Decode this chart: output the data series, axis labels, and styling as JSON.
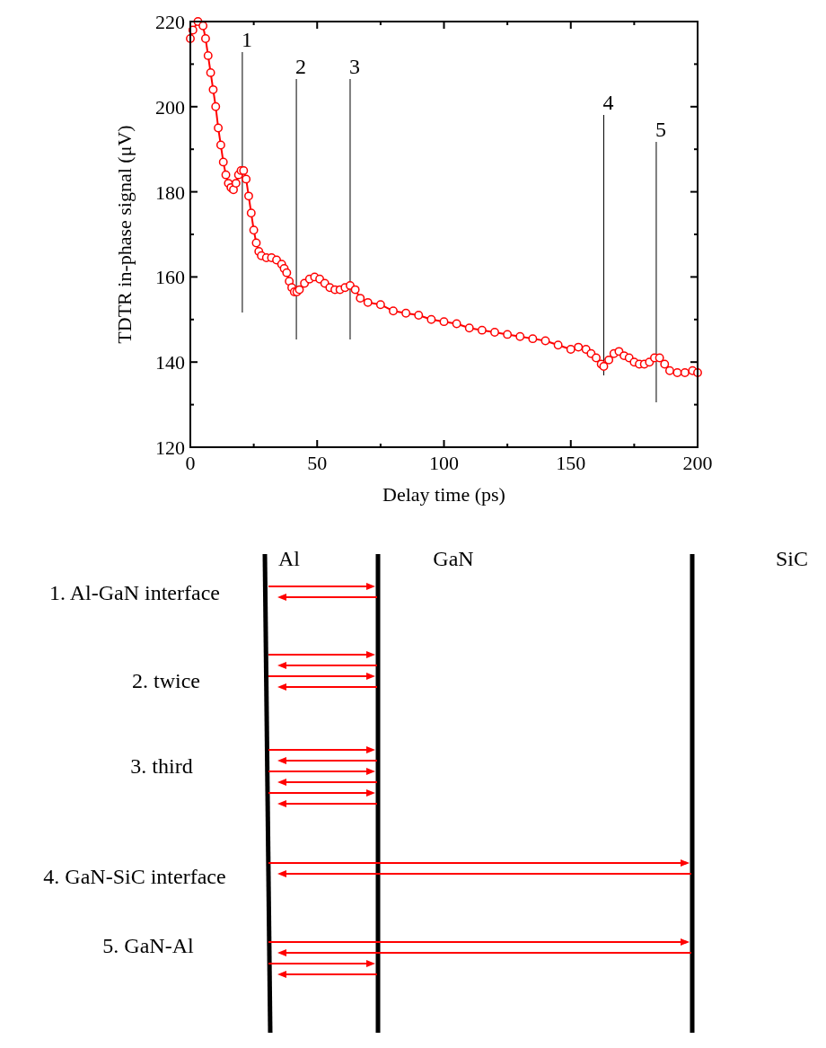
{
  "chart_data": [
    {
      "type": "line",
      "xlabel": "Delay time (ps)",
      "ylabel": "TDTR in-phase signal (μV)",
      "marker": "circle",
      "line_style": "solid",
      "xlim": [
        0,
        200
      ],
      "ylim": [
        120,
        220
      ],
      "xticks": [
        0,
        {
          "value": 25,
          "label": null
        },
        50,
        {
          "value": 75,
          "label": null
        },
        100,
        {
          "value": 125,
          "label": null
        },
        150,
        {
          "value": 175,
          "label": null
        },
        200
      ],
      "yticks": [
        120,
        {
          "value": 130,
          "label": null
        },
        140,
        {
          "value": 150,
          "label": null
        },
        160,
        {
          "value": 170,
          "label": null
        },
        180,
        {
          "value": 190,
          "label": null
        },
        200,
        {
          "value": 210,
          "label": null
        },
        220
      ],
      "ref_lines": [
        {
          "axis": "x",
          "value": 20.5,
          "color": "#000000"
        },
        {
          "axis": "x",
          "value": 41.8,
          "color": "#000000"
        },
        {
          "axis": "x",
          "value": 63,
          "color": "#000000"
        },
        {
          "axis": "x",
          "value": 163,
          "color": "#000000"
        },
        {
          "axis": "x",
          "value": 183.7,
          "color": "#000000"
        }
      ],
      "annotations": [
        "1",
        "2",
        "3",
        "4",
        "5"
      ],
      "series": [
        {
          "color": "#ff0000",
          "x": [
            0,
            1,
            3,
            5,
            6,
            7,
            8,
            9,
            10,
            11,
            12,
            13,
            14,
            15,
            16,
            17,
            18,
            19,
            20,
            21,
            22,
            23,
            24,
            25,
            26,
            27,
            28,
            30,
            32,
            34,
            36,
            37,
            38,
            39,
            40,
            41,
            42,
            43,
            45,
            47,
            49,
            51,
            53,
            55,
            57,
            59,
            61,
            63,
            65,
            67,
            70,
            75,
            80,
            85,
            90,
            95,
            100,
            105,
            110,
            115,
            120,
            125,
            130,
            135,
            140,
            145,
            150,
            153,
            156,
            158,
            160,
            162,
            163,
            165,
            167,
            169,
            171,
            173,
            175,
            177,
            179,
            181,
            183,
            185,
            187,
            189,
            192,
            195,
            198,
            200
          ],
          "values": [
            216,
            218,
            220,
            219,
            216,
            212,
            208,
            204,
            200,
            195,
            191,
            187,
            184,
            182,
            181,
            180.5,
            182,
            184,
            185,
            185,
            183,
            179,
            175,
            171,
            168,
            166,
            165,
            164.5,
            164.5,
            164,
            163,
            162,
            161,
            159,
            157.5,
            156.5,
            156.5,
            157,
            158.5,
            159.5,
            160,
            159.5,
            158.5,
            157.5,
            157,
            157,
            157.5,
            158,
            157,
            155,
            154,
            153.5,
            152,
            151.5,
            151,
            150,
            149.5,
            149,
            148,
            147.5,
            147,
            146.5,
            146,
            145.5,
            145,
            144,
            143,
            143.5,
            143,
            142,
            141,
            139.5,
            139,
            140.5,
            142,
            142.5,
            141.5,
            141,
            140,
            139.5,
            139.5,
            140,
            141,
            141,
            139.5,
            138,
            137.5,
            137.5,
            138,
            137.5
          ]
        }
      ]
    },
    {
      "type": "other",
      "categories": [
        "Al",
        "GaN",
        "SiC"
      ],
      "annotations": [
        "1. Al-GaN interface",
        "2. twice",
        "3. third",
        "4. GaN-SiC interface",
        "5. GaN-Al"
      ]
    }
  ]
}
